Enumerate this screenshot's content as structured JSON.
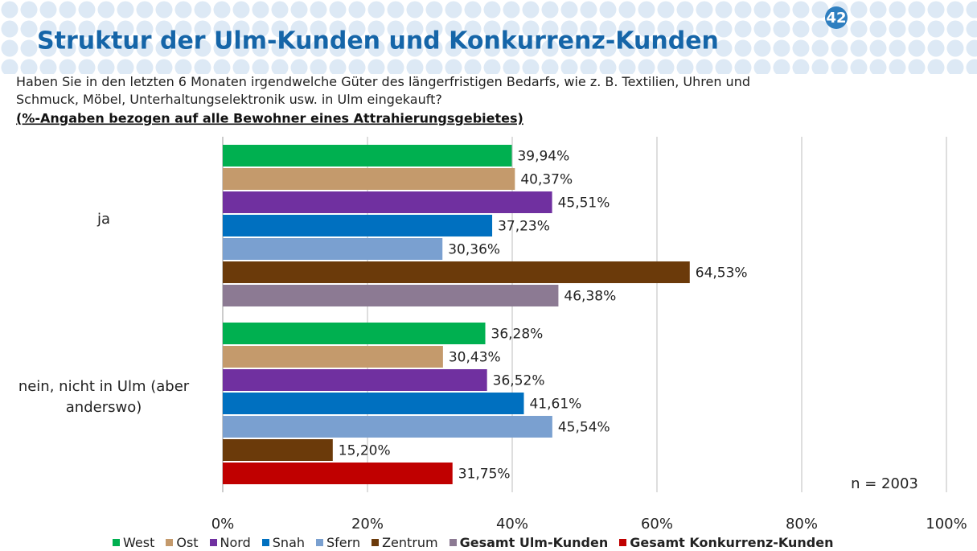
{
  "page_number": "42",
  "chart_data": {
    "type": "bar",
    "orientation": "horizontal",
    "title": "Struktur der Ulm-Kunden und Konkurrenz-Kunden",
    "subtitle": [
      "Haben Sie in den letzten 6 Monaten irgendwelche Güter des längerfristigen Bedarfs, wie z. B. Textilien, Uhren und",
      "Schmuck, Möbel, Unterhaltungselektronik usw. in Ulm eingekauft?"
    ],
    "note": "(%-Angaben bezogen auf alle Bewohner eines Attrahierungsgebietes)",
    "annotation": "n = 2003",
    "categories": [
      "ja",
      "nein, nicht in Ulm (aber anderswo)"
    ],
    "series": [
      {
        "name": "West",
        "color": "#00b050",
        "values": [
          39.94,
          36.28
        ],
        "value_labels": [
          "39,94%",
          "36,28%"
        ]
      },
      {
        "name": "Ost",
        "color": "#c49a6c",
        "values": [
          40.37,
          30.43
        ],
        "value_labels": [
          "40,37%",
          "30,43%"
        ]
      },
      {
        "name": "Nord",
        "color": "#7030a0",
        "values": [
          45.51,
          36.52
        ],
        "value_labels": [
          "45,51%",
          "36,52%"
        ]
      },
      {
        "name": "Snah",
        "color": "#0070c0",
        "values": [
          37.23,
          41.61
        ],
        "value_labels": [
          "37,23%",
          "41,61%"
        ]
      },
      {
        "name": "Sfern",
        "color": "#7aa0d0",
        "values": [
          30.36,
          45.54
        ],
        "value_labels": [
          "30,36%",
          "45,54%"
        ]
      },
      {
        "name": "Zentrum",
        "color": "#6b3a0a",
        "values": [
          64.53,
          15.2
        ],
        "value_labels": [
          "64,53%",
          "15,20%"
        ]
      },
      {
        "name": "Gesamt Ulm-Kunden",
        "color": "#8c7a93",
        "values": [
          46.38,
          null
        ],
        "value_labels": [
          "46,38%",
          null
        ]
      },
      {
        "name": "Gesamt Konkurrenz-Kunden",
        "color": "#c00000",
        "values": [
          null,
          31.75
        ],
        "value_labels": [
          null,
          "31,75%"
        ]
      }
    ],
    "xlim": [
      0,
      100
    ],
    "xticks": [
      {
        "value": 0,
        "label": "0%"
      },
      {
        "value": 20,
        "label": "20%"
      },
      {
        "value": 40,
        "label": "40%"
      },
      {
        "value": 60,
        "label": "60%"
      },
      {
        "value": 80,
        "label": "80%"
      },
      {
        "value": 100,
        "label": "100%"
      }
    ],
    "grid": true,
    "legend": "bottom"
  }
}
